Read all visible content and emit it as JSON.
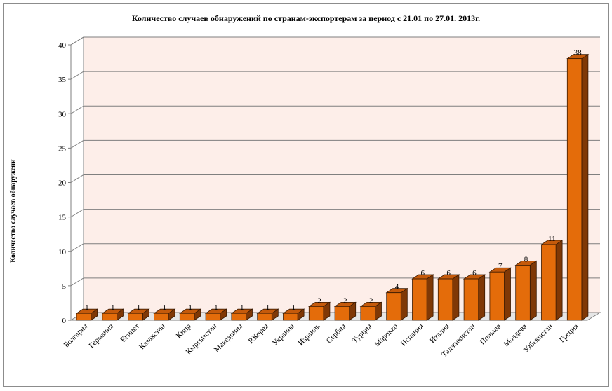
{
  "chart_data": {
    "type": "bar",
    "title": "Количество случаев обнаружений по странам-экспортерам за период с 21.01 по 27.01. 2013г.",
    "ylabel": "Количество случаев обнаружени",
    "xlabel": "",
    "ylim": [
      0,
      40
    ],
    "yticks": [
      0,
      5,
      10,
      15,
      20,
      25,
      30,
      35,
      40
    ],
    "grid": true,
    "legend": "none",
    "categories": [
      "Болгария",
      "Германия",
      "Египет",
      "Казахстан",
      "Кипр",
      "Кыргызстан",
      "Македония",
      "Р.Корея",
      "Украина",
      "Израиль",
      "Сербия",
      "Турция",
      "Марокко",
      "Испания",
      "Италия",
      "Таджикистан",
      "Польша",
      "Молдова",
      "Узбекистан",
      "Греция"
    ],
    "values": [
      1,
      1,
      1,
      1,
      1,
      1,
      1,
      1,
      1,
      2,
      2,
      2,
      4,
      6,
      6,
      6,
      7,
      8,
      11,
      38
    ],
    "colors": {
      "bar_front": "#e46c0a",
      "bar_side": "#7f3806",
      "bar_top": "#c55a0b",
      "wall": "#fdeee9",
      "gridline": "#7f7f7f",
      "axis": "#7f7f7f"
    }
  }
}
